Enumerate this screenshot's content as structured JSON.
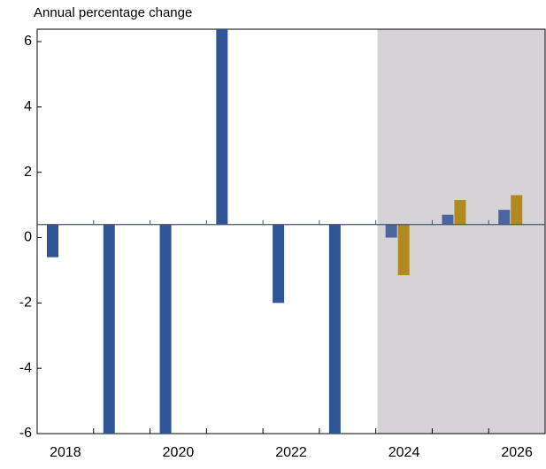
{
  "chart_data": {
    "type": "bar",
    "y_axis_label": "Annual percentage change",
    "categories": [
      "2018",
      null,
      "2020",
      null,
      "2022",
      null,
      "2024",
      null,
      "2026"
    ],
    "series": [
      {
        "color": "#2f5597",
        "values": [
          -0.6,
          -6,
          -6,
          6.38,
          -2.0,
          -6,
          0.0,
          0.7,
          0.85
        ]
      },
      {
        "color": "#b08a1e",
        "values": [
          null,
          null,
          null,
          null,
          null,
          null,
          -1.15,
          1.15,
          1.3
        ]
      }
    ],
    "baseline": 0.4,
    "shaded_from_index": 6,
    "shade_color": "#d6d3d6",
    "ylim": [
      -6,
      6.38
    ],
    "yticks": [
      -6,
      -4,
      -2,
      0,
      2,
      4,
      6
    ]
  }
}
